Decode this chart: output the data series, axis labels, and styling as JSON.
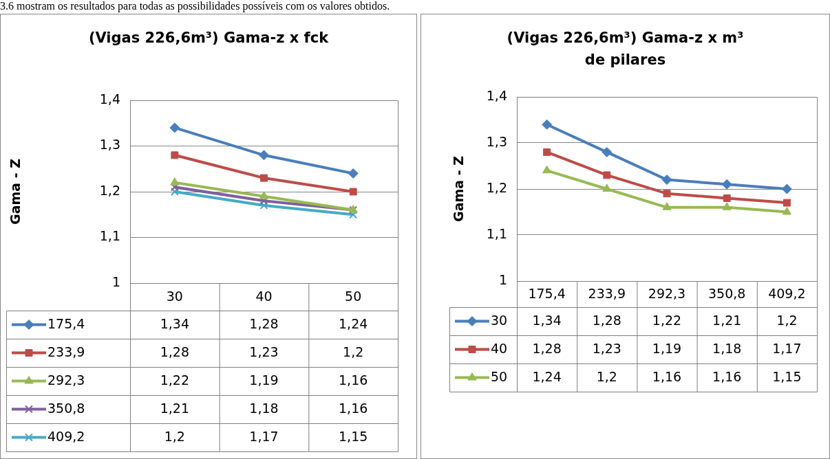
{
  "chart_data": [
    {
      "type": "line",
      "title": "(Vigas 226,6m³) Gama-z x fck",
      "ylabel": "Gama - Z",
      "categories": [
        "30",
        "40",
        "50"
      ],
      "ylim": [
        1,
        1.4
      ],
      "yticks": [
        1,
        {
          "value": 1.1,
          "label": "1,1"
        },
        {
          "value": 1.2,
          "label": "1,2"
        },
        {
          "value": 1.3,
          "label": "1,3"
        },
        {
          "value": 1.4,
          "label": "1,4"
        }
      ],
      "grid": "y",
      "legend": "bottom",
      "annotations": [
        "3.6 mostram os resultados para todas as possibilidades possíveis com os valores obtidos."
      ],
      "series": [
        {
          "name": "175,4",
          "color": "#4a7ebb",
          "marker": "diamond",
          "values": [
            1.34,
            1.28,
            1.24
          ],
          "value_labels": [
            "1,34",
            "1,28",
            "1,24"
          ]
        },
        {
          "name": "233,9",
          "color": "#be4b48",
          "marker": "square",
          "values": [
            1.28,
            1.23,
            1.2
          ],
          "value_labels": [
            "1,28",
            "1,23",
            "1,2"
          ]
        },
        {
          "name": "292,3",
          "color": "#98b954",
          "marker": "triangle",
          "values": [
            1.22,
            1.19,
            1.16
          ],
          "value_labels": [
            "1,22",
            "1,19",
            "1,16"
          ]
        },
        {
          "name": "350,8",
          "color": "#7d60a0",
          "marker": "cross",
          "values": [
            1.21,
            1.18,
            1.16
          ],
          "value_labels": [
            "1,21",
            "1,18",
            "1,16"
          ]
        },
        {
          "name": "409,2",
          "color": "#46aac5",
          "marker": "cross",
          "values": [
            1.2,
            1.17,
            1.15
          ],
          "value_labels": [
            "1,2",
            "1,17",
            "1,15"
          ]
        }
      ]
    },
    {
      "type": "line",
      "title": "(Vigas 226,6m³) Gama-z x m³ de pilares",
      "ylabel": "Gama - Z",
      "categories": [
        "175,4",
        "233,9",
        "292,3",
        "350,8",
        "409,2"
      ],
      "ylim": [
        1,
        1.4
      ],
      "yticks": [
        1,
        {
          "value": 1.1,
          "label": "1,1"
        },
        {
          "value": 1.2,
          "label": "1,2"
        },
        {
          "value": 1.3,
          "label": "1,3"
        },
        {
          "value": 1.4,
          "label": "1,4"
        }
      ],
      "grid": "y",
      "legend": "bottom",
      "series": [
        {
          "name": "30",
          "color": "#4a7ebb",
          "marker": "diamond",
          "values": [
            1.34,
            1.28,
            1.22,
            1.21,
            1.2
          ],
          "value_labels": [
            "1,34",
            "1,28",
            "1,22",
            "1,21",
            "1,2"
          ]
        },
        {
          "name": "40",
          "color": "#be4b48",
          "marker": "square",
          "values": [
            1.28,
            1.23,
            1.19,
            1.18,
            1.17
          ],
          "value_labels": [
            "1,28",
            "1,23",
            "1,19",
            "1,18",
            "1,17"
          ]
        },
        {
          "name": "50",
          "color": "#98b954",
          "marker": "triangle",
          "values": [
            1.24,
            1.2,
            1.16,
            1.16,
            1.15
          ],
          "value_labels": [
            "1,24",
            "1,2",
            "1,16",
            "1,16",
            "1,15"
          ]
        }
      ]
    }
  ]
}
